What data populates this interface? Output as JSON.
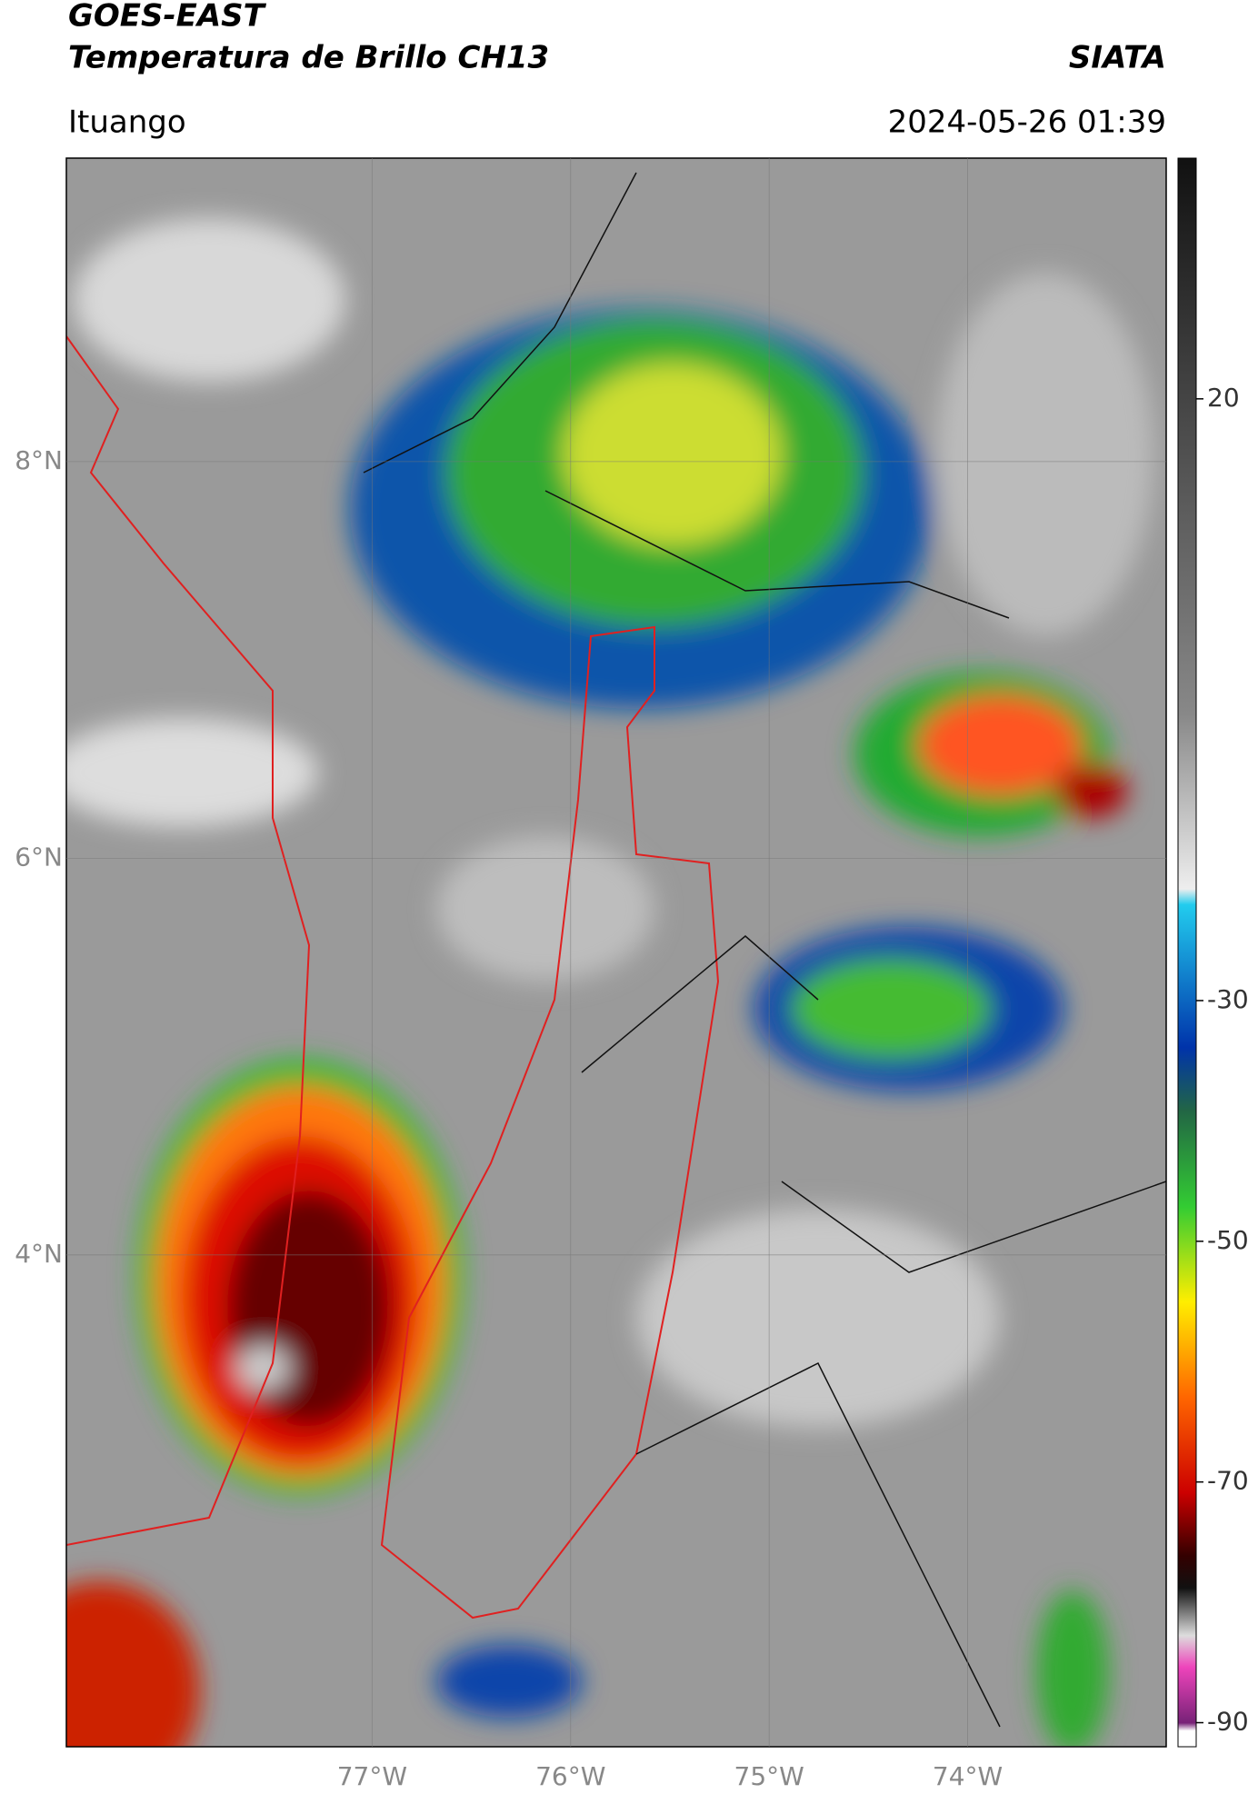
{
  "header": {
    "title": "GOES-EAST",
    "subtitle": "Temperatura de Brillo CH13",
    "brand": "SIATA",
    "location": "Ituango",
    "datetime": "2024-05-26 01:39"
  },
  "map": {
    "lon_range": [
      -78.54,
      -73.0
    ],
    "lat_range": [
      1.52,
      9.53
    ],
    "lat_ticks": [
      {
        "value": 8,
        "label": "8°N"
      },
      {
        "value": 6,
        "label": "6°N"
      },
      {
        "value": 4,
        "label": "4°N"
      }
    ],
    "lon_ticks": [
      {
        "value": -77,
        "label": "77°W"
      },
      {
        "value": -76,
        "label": "76°W"
      },
      {
        "value": -75,
        "label": "75°W"
      },
      {
        "value": -74,
        "label": "74°W"
      }
    ]
  },
  "colorbar": {
    "range": [
      -92,
      40
    ],
    "ticks": [
      20,
      -30,
      -50,
      -70,
      -90
    ]
  }
}
